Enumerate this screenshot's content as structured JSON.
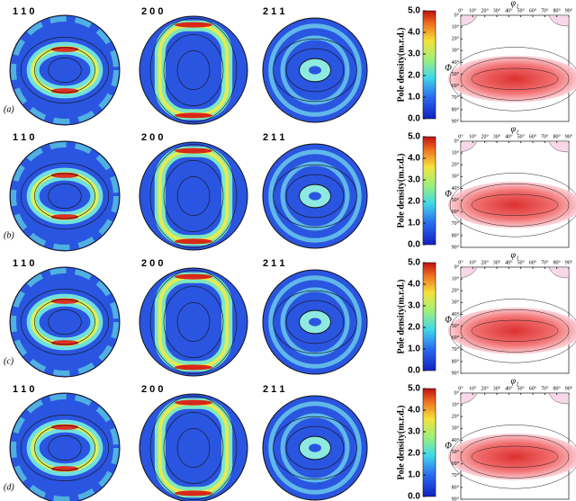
{
  "rows": [
    {
      "label": "(a)",
      "pole_figures": [
        "1 1 0",
        "2 0 0",
        "2 1 1"
      ]
    },
    {
      "label": "(b)",
      "pole_figures": [
        "1 1 0",
        "2 0 0",
        "2 1 1"
      ]
    },
    {
      "label": "(c)",
      "pole_figures": [
        "1 1 0",
        "2 0 0",
        "2 1 1"
      ]
    },
    {
      "label": "(d)",
      "pole_figures": [
        "1 1 0",
        "2 0 0",
        "2 1 1"
      ]
    }
  ],
  "colorbar": {
    "title": "Pole density(m.r.d.)",
    "range": [
      0,
      5
    ],
    "ticks": [
      {
        "value": 0,
        "label": "0.0"
      },
      {
        "value": 1,
        "label": "1.0"
      },
      {
        "value": 2,
        "label": "2.0"
      },
      {
        "value": 3,
        "label": "3.0"
      },
      {
        "value": 4,
        "label": "4.0"
      },
      {
        "value": 5,
        "label": "5.0"
      }
    ]
  },
  "odf": {
    "x_label": "φ₁",
    "y_label": "Φ",
    "x_range": [
      0,
      90
    ],
    "y_range": [
      0,
      90
    ],
    "x_ticks": [
      {
        "value": 0,
        "label": "0°"
      },
      {
        "value": 10,
        "label": "10°"
      },
      {
        "value": 20,
        "label": "20°"
      },
      {
        "value": 30,
        "label": "30°"
      },
      {
        "value": 40,
        "label": "40°"
      },
      {
        "value": 50,
        "label": "50°"
      },
      {
        "value": 60,
        "label": "60°"
      },
      {
        "value": 70,
        "label": "70°"
      },
      {
        "value": 80,
        "label": "80°"
      },
      {
        "value": 90,
        "label": "90°"
      }
    ],
    "y_ticks": [
      {
        "value": 0,
        "label": "0°"
      },
      {
        "value": 10,
        "label": "10°"
      },
      {
        "value": 20,
        "label": "20°"
      },
      {
        "value": 30,
        "label": "30°"
      },
      {
        "value": 40,
        "label": "40°"
      },
      {
        "value": 50,
        "label": "50°"
      },
      {
        "value": 60,
        "label": "60°"
      },
      {
        "value": 70,
        "label": "70°"
      },
      {
        "value": 80,
        "label": "80°"
      },
      {
        "value": 90,
        "label": "90°"
      }
    ]
  }
}
